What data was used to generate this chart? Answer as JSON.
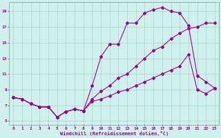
{
  "xlabel": "Windchill (Refroidissement éolien,°C)",
  "background_color": "#cff0eb",
  "grid_color": "#aad8d3",
  "line_color": "#990099",
  "xlim": [
    -0.5,
    23.5
  ],
  "ylim": [
    4.5,
    20.2
  ],
  "xticks": [
    0,
    1,
    2,
    3,
    4,
    5,
    6,
    7,
    8,
    9,
    10,
    11,
    12,
    13,
    14,
    15,
    16,
    17,
    18,
    19,
    20,
    21,
    22,
    23
  ],
  "yticks": [
    5,
    7,
    9,
    11,
    13,
    15,
    17,
    19
  ],
  "line1_x": [
    0,
    1,
    2,
    3,
    4,
    5,
    6,
    7,
    8,
    9,
    10,
    11,
    12,
    13,
    14,
    15,
    16,
    17,
    18,
    19,
    20,
    21,
    22,
    23
  ],
  "line1_y": [
    8.0,
    7.8,
    7.2,
    6.8,
    6.8,
    5.5,
    6.2,
    6.5,
    6.3,
    9.5,
    13.2,
    14.8,
    14.8,
    17.5,
    17.5,
    18.8,
    19.2,
    19.5,
    19.0,
    18.8,
    17.2,
    10.8,
    10.0,
    9.2
  ],
  "line2_x": [
    0,
    1,
    2,
    3,
    4,
    5,
    6,
    7,
    8,
    9,
    10,
    11,
    12,
    13,
    14,
    15,
    16,
    17,
    18,
    19,
    20,
    21,
    22,
    23
  ],
  "line2_y": [
    8.0,
    7.8,
    7.2,
    6.8,
    6.8,
    5.5,
    6.2,
    6.5,
    6.3,
    7.8,
    8.8,
    9.5,
    10.5,
    11.0,
    12.0,
    13.0,
    14.0,
    14.5,
    15.5,
    16.2,
    16.8,
    17.0,
    17.5,
    17.5
  ],
  "line3_x": [
    0,
    1,
    2,
    3,
    4,
    5,
    6,
    7,
    8,
    9,
    10,
    11,
    12,
    13,
    14,
    15,
    16,
    17,
    18,
    19,
    20,
    21,
    22,
    23
  ],
  "line3_y": [
    8.0,
    7.8,
    7.2,
    6.8,
    6.8,
    5.5,
    6.2,
    6.5,
    6.3,
    7.5,
    7.8,
    8.2,
    8.7,
    9.0,
    9.5,
    10.0,
    10.5,
    11.0,
    11.5,
    12.0,
    13.5,
    9.0,
    8.5,
    9.2
  ]
}
